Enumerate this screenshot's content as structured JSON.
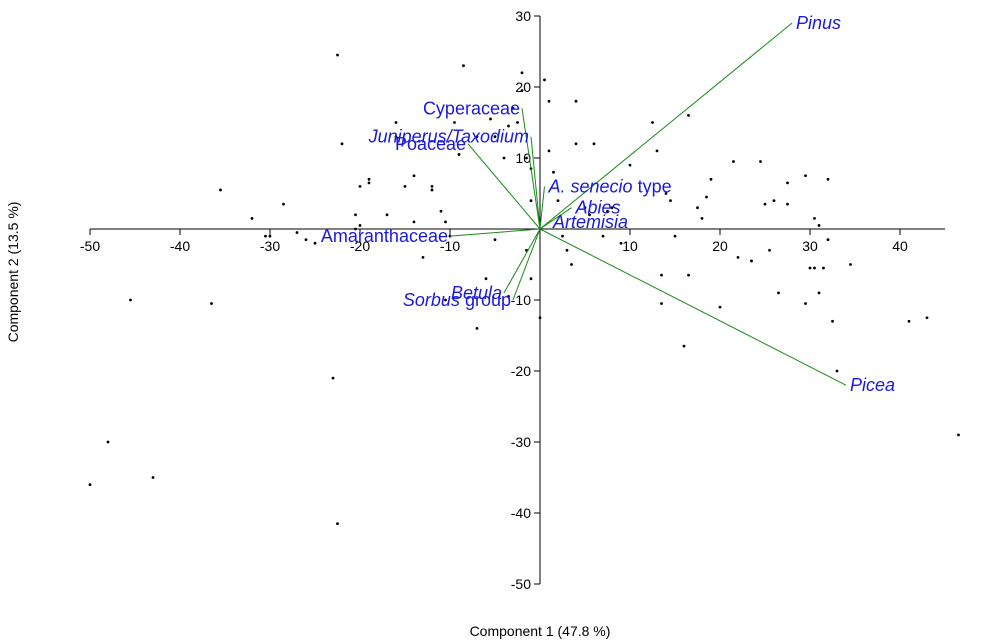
{
  "chart_data": {
    "type": "scatter",
    "subtype": "pca-biplot",
    "xlabel": "Component 1 (47.8 %)",
    "ylabel": "Component 2 (13.5 %)",
    "xlim": [
      -50,
      45
    ],
    "ylim": [
      -50,
      30
    ],
    "x_ticks": [
      -50,
      -40,
      -30,
      -20,
      -10,
      10,
      20,
      30,
      40
    ],
    "y_ticks": [
      -50,
      -40,
      -30,
      -20,
      -10,
      10,
      20,
      30
    ],
    "grid": false,
    "colors": {
      "points": "#000000",
      "vectors": "#1a8a1a",
      "labels": "#1a1adc",
      "axes": "#000000"
    },
    "vectors": [
      {
        "name": "Pinus",
        "parts": [
          {
            "text": "Pinus",
            "italic": true
          }
        ],
        "x": 28,
        "y": 29
      },
      {
        "name": "Cyperaceae",
        "parts": [
          {
            "text": "Cyperaceae",
            "italic": false
          }
        ],
        "x": -2,
        "y": 17
      },
      {
        "name": "Juniperus/Taxodium",
        "parts": [
          {
            "text": "Juniperus/Taxodium",
            "italic": true
          }
        ],
        "x": -1,
        "y": 13
      },
      {
        "name": "Poaceae",
        "parts": [
          {
            "text": "Poaceae",
            "italic": false
          }
        ],
        "x": -8,
        "y": 12
      },
      {
        "name": "A. senecio type",
        "parts": [
          {
            "text": "A. senecio",
            "italic": true
          },
          {
            "text": " type",
            "italic": false
          }
        ],
        "x": 0.5,
        "y": 6
      },
      {
        "name": "Abies",
        "parts": [
          {
            "text": "Abies",
            "italic": true
          }
        ],
        "x": 3.5,
        "y": 3
      },
      {
        "name": "Artemisia",
        "parts": [
          {
            "text": "Artemisia",
            "italic": true
          }
        ],
        "x": 1,
        "y": 1
      },
      {
        "name": "Amaranthaceae",
        "parts": [
          {
            "text": "Amaranthaceae",
            "italic": false
          }
        ],
        "x": -10,
        "y": -1
      },
      {
        "name": "Betula",
        "parts": [
          {
            "text": "Betula",
            "italic": true
          }
        ],
        "x": -4,
        "y": -9
      },
      {
        "name": "Sorbus group",
        "parts": [
          {
            "text": "Sorbus",
            "italic": true
          },
          {
            "text": " group",
            "italic": false
          }
        ],
        "x": -3,
        "y": -10
      },
      {
        "name": "Picea",
        "parts": [
          {
            "text": "Picea",
            "italic": true
          }
        ],
        "x": 34,
        "y": -22
      }
    ],
    "points": [
      [
        -35.5,
        5.5
      ],
      [
        -32,
        1.5
      ],
      [
        -30.5,
        -1
      ],
      [
        -28.5,
        3.5
      ],
      [
        -27,
        -0.5
      ],
      [
        -26,
        -1.5
      ],
      [
        -25,
        -2
      ],
      [
        -22.5,
        24.5
      ],
      [
        -22,
        12
      ],
      [
        -23,
        -21
      ],
      [
        -22.5,
        -41.5
      ],
      [
        -20.5,
        0
      ],
      [
        -20.5,
        2
      ],
      [
        -20,
        6
      ],
      [
        -20,
        0.5
      ],
      [
        -19,
        7
      ],
      [
        -19,
        6.5
      ],
      [
        -17,
        2
      ],
      [
        -16,
        15
      ],
      [
        -16,
        13
      ],
      [
        -15,
        6
      ],
      [
        -14,
        7.5
      ],
      [
        -14,
        1
      ],
      [
        -13,
        -4
      ],
      [
        -12,
        6
      ],
      [
        -12,
        5.5
      ],
      [
        -11,
        2.5
      ],
      [
        -10.5,
        1
      ],
      [
        -10,
        -1
      ],
      [
        -9.5,
        15
      ],
      [
        -9,
        10.5
      ],
      [
        -8.5,
        23
      ],
      [
        -7,
        13
      ],
      [
        -6,
        -7
      ],
      [
        -7,
        -14
      ],
      [
        -5.5,
        15.5
      ],
      [
        -5,
        13
      ],
      [
        -4,
        10
      ],
      [
        -3,
        17
      ],
      [
        -3.5,
        14.5
      ],
      [
        -2,
        22
      ],
      [
        -2,
        19.5
      ],
      [
        -2.5,
        15
      ],
      [
        -1.5,
        10
      ],
      [
        -1,
        8.5
      ],
      [
        -1,
        4
      ],
      [
        -1.5,
        -3
      ],
      [
        -1,
        -7
      ],
      [
        -3.5,
        -9.5
      ],
      [
        0,
        -12.5
      ],
      [
        0.5,
        21
      ],
      [
        1,
        18
      ],
      [
        1,
        11
      ],
      [
        1.5,
        8
      ],
      [
        2,
        4
      ],
      [
        2.5,
        -1
      ],
      [
        3,
        -3
      ],
      [
        3.5,
        -5
      ],
      [
        4,
        12
      ],
      [
        4,
        18
      ],
      [
        5,
        3
      ],
      [
        5.5,
        2
      ],
      [
        6,
        12
      ],
      [
        7,
        -1
      ],
      [
        7.5,
        2.5
      ],
      [
        8,
        3
      ],
      [
        9,
        -2
      ],
      [
        10,
        9
      ],
      [
        12.5,
        15
      ],
      [
        13,
        11
      ],
      [
        14,
        5
      ],
      [
        14.5,
        4
      ],
      [
        13.5,
        -6.5
      ],
      [
        13.5,
        -10.5
      ],
      [
        15,
        -1
      ],
      [
        16,
        -16.5
      ],
      [
        16.5,
        16
      ],
      [
        16.5,
        -6.5
      ],
      [
        17.5,
        3
      ],
      [
        18,
        1.5
      ],
      [
        18.5,
        4.5
      ],
      [
        19,
        7
      ],
      [
        20,
        -11
      ],
      [
        21.5,
        9.5
      ],
      [
        22,
        -4
      ],
      [
        23.5,
        -4.5
      ],
      [
        24.5,
        9.5
      ],
      [
        25,
        3.5
      ],
      [
        25.5,
        -3
      ],
      [
        26,
        4
      ],
      [
        26.5,
        -9
      ],
      [
        27.5,
        6.5
      ],
      [
        27.5,
        3.5
      ],
      [
        29.5,
        7.5
      ],
      [
        29.5,
        -10.5
      ],
      [
        30,
        -5.5
      ],
      [
        30.5,
        -5.5
      ],
      [
        30.5,
        1.5
      ],
      [
        31,
        0.5
      ],
      [
        31,
        -9
      ],
      [
        31.5,
        -5.5
      ],
      [
        32,
        7
      ],
      [
        32,
        -1.5
      ],
      [
        32.5,
        -13
      ],
      [
        33,
        -20
      ],
      [
        34.5,
        -5
      ],
      [
        41,
        -13
      ],
      [
        43,
        -12.5
      ],
      [
        46.5,
        -29
      ],
      [
        -45.5,
        -10
      ],
      [
        -36.5,
        -10.5
      ],
      [
        -48,
        -30
      ],
      [
        -43,
        -35
      ],
      [
        -50,
        -36
      ],
      [
        -30,
        -1
      ],
      [
        -10.5,
        -10
      ],
      [
        -5,
        -1.5
      ]
    ]
  }
}
